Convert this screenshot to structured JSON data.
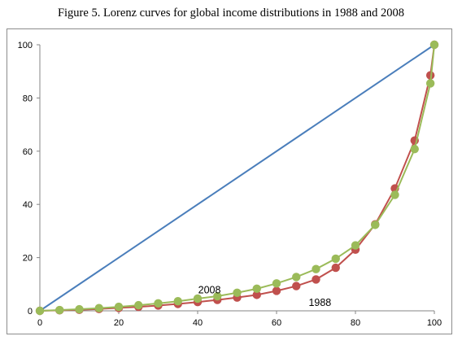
{
  "title": "Figure 5. Lorenz curves for global income distributions in 1988 and 2008",
  "chart_data": {
    "type": "line",
    "title": "Figure 5. Lorenz curves for global income distributions in 1988 and 2008",
    "xlabel": "",
    "ylabel": "",
    "xlim": [
      0,
      100
    ],
    "ylim": [
      0,
      100
    ],
    "xticks": [
      0,
      20,
      40,
      60,
      80,
      100
    ],
    "yticks": [
      0,
      20,
      40,
      60,
      80,
      100
    ],
    "grid": false,
    "legend": "none",
    "equality_line": {
      "x": [
        0,
        100
      ],
      "y": [
        0,
        100
      ],
      "color": "#4a7ebb"
    },
    "series": [
      {
        "name": "1988",
        "color": "#c0504d",
        "x": [
          0,
          5,
          10,
          15,
          20,
          25,
          30,
          35,
          40,
          45,
          50,
          55,
          60,
          65,
          70,
          75,
          80,
          85,
          90,
          95,
          99,
          100
        ],
        "y": [
          0,
          0.2,
          0.4,
          0.7,
          1.1,
          1.5,
          2.0,
          2.6,
          3.3,
          4.1,
          5.0,
          6.0,
          7.5,
          9.3,
          11.8,
          16.2,
          23.0,
          32.5,
          46.0,
          64.0,
          88.5,
          100
        ]
      },
      {
        "name": "2008",
        "color": "#9bbb59",
        "x": [
          0,
          5,
          10,
          15,
          20,
          25,
          30,
          35,
          40,
          45,
          50,
          55,
          60,
          65,
          70,
          75,
          80,
          85,
          90,
          95,
          99,
          100
        ],
        "y": [
          0,
          0.3,
          0.6,
          1.0,
          1.5,
          2.1,
          2.8,
          3.6,
          4.6,
          5.5,
          6.8,
          8.3,
          10.3,
          12.7,
          15.7,
          19.6,
          24.6,
          32.3,
          43.6,
          60.8,
          85.5,
          100
        ]
      }
    ],
    "annotations": [
      {
        "text": "2008",
        "x": 43,
        "y": 6.5
      },
      {
        "text": "1988",
        "x": 71,
        "y": 1.8
      }
    ]
  }
}
